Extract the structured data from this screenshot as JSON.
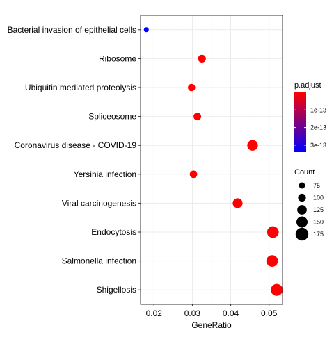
{
  "chart_data": {
    "type": "scatter",
    "title": "",
    "xlabel": "GeneRatio",
    "ylabel": "",
    "xlim": [
      0.0165,
      0.0535
    ],
    "x_ticks": [
      0.02,
      0.03,
      0.04,
      0.05
    ],
    "x_tick_labels": [
      "0.02",
      "0.03",
      "0.04",
      "0.05"
    ],
    "grid": true,
    "categories": [
      "Bacterial invasion of epithelial cells",
      "Ribosome",
      "Ubiquitin mediated proteolysis",
      "Spliceosome",
      "Coronavirus disease - COVID-19",
      "Yersinia infection",
      "Viral carcinogenesis",
      "Endocytosis",
      "Salmonella infection",
      "Shigellosis"
    ],
    "points": [
      {
        "term": "Bacterial invasion of epithelial cells",
        "gene_ratio": 0.018,
        "count": 55,
        "p_adjust": 3.4e-13
      },
      {
        "term": "Ribosome",
        "gene_ratio": 0.0325,
        "count": 100,
        "p_adjust": 1e-16
      },
      {
        "term": "Ubiquitin mediated proteolysis",
        "gene_ratio": 0.0298,
        "count": 92,
        "p_adjust": 1e-16
      },
      {
        "term": "Spliceosome",
        "gene_ratio": 0.0313,
        "count": 97,
        "p_adjust": 1e-16
      },
      {
        "term": "Coronavirus disease - COVID-19",
        "gene_ratio": 0.0457,
        "count": 142,
        "p_adjust": 1e-16
      },
      {
        "term": "Yersinia infection",
        "gene_ratio": 0.0303,
        "count": 94,
        "p_adjust": 1e-16
      },
      {
        "term": "Viral carcinogenesis",
        "gene_ratio": 0.0418,
        "count": 130,
        "p_adjust": 1e-16
      },
      {
        "term": "Endocytosis",
        "gene_ratio": 0.051,
        "count": 158,
        "p_adjust": 1e-16
      },
      {
        "term": "Salmonella infection",
        "gene_ratio": 0.0508,
        "count": 157,
        "p_adjust": 1e-16
      },
      {
        "term": "Shigellosis",
        "gene_ratio": 0.052,
        "count": 161,
        "p_adjust": 1e-16
      }
    ],
    "color_legend": {
      "title": "p.adjust",
      "ticks": [
        1e-13,
        2e-13,
        3e-13
      ],
      "tick_labels": [
        "1e-13",
        "2e-13",
        "3e-13"
      ],
      "range": [
        0,
        3.4e-13
      ],
      "low_color": "#ff0000",
      "high_color": "#0000ff"
    },
    "size_legend": {
      "title": "Count",
      "values": [
        75,
        100,
        125,
        150,
        175
      ],
      "labels": [
        "75",
        "100",
        "125",
        "150",
        "175"
      ]
    },
    "colors": {
      "panel_border": "#333333",
      "grid_major": "#ebebeb",
      "grid_minor": "#f4f4f4",
      "tick_text": "#4d4d4d",
      "label_text": "#000000"
    }
  }
}
